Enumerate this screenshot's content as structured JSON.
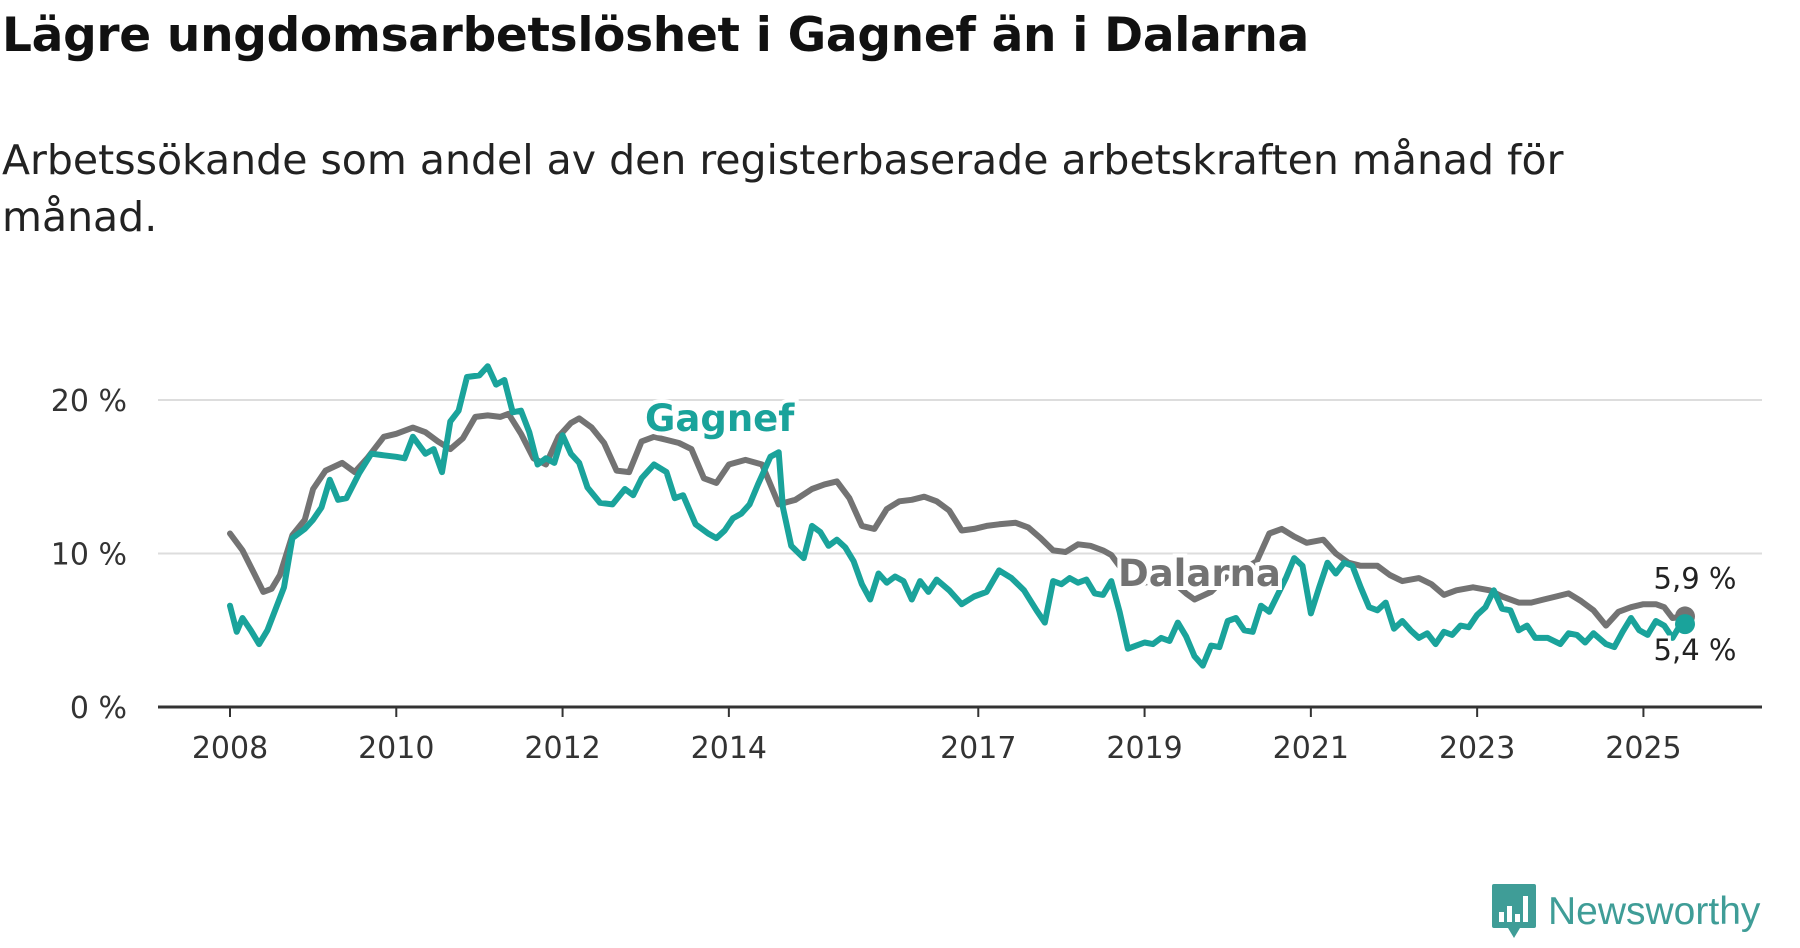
{
  "header": {
    "title": "Lägre ungdomsarbetslöshet i Gagnef än i Dalarna",
    "subtitle": "Arbetssökande som andel av den registerbaserade arbetskraften månad för månad."
  },
  "branding": {
    "name": "Newsworthy",
    "icon": "bar-chart-badge-icon"
  },
  "colors": {
    "gagnef": "#1aa39b",
    "dalarna": "#737373",
    "grid": "#dddddd",
    "axis": "#333333",
    "brand": "#3f9d97"
  },
  "chart_data": {
    "type": "line",
    "title": "Lägre ungdomsarbetslöshet i Gagnef än i Dalarna",
    "xlabel": "",
    "ylabel": "",
    "ylim": [
      0,
      20
    ],
    "xlim": [
      2008.0,
      2025.5
    ],
    "yticks": [
      0,
      10,
      20
    ],
    "ytick_labels": [
      "0 %",
      "10 %",
      "20 %"
    ],
    "xticks": [
      2008,
      2010,
      2012,
      2014,
      2017,
      2019,
      2021,
      2023,
      2025
    ],
    "xtick_labels": [
      "2008",
      "2010",
      "2012",
      "2014",
      "2017",
      "2019",
      "2021",
      "2023",
      "2025"
    ],
    "grid": true,
    "series": [
      {
        "name": "Dalarna",
        "label": "Dalarna",
        "end_label": "5,9 %",
        "points": [
          [
            2008.0,
            11.3
          ],
          [
            2008.15,
            10.2
          ],
          [
            2008.3,
            8.6
          ],
          [
            2008.4,
            7.5
          ],
          [
            2008.5,
            7.7
          ],
          [
            2008.6,
            8.6
          ],
          [
            2008.75,
            11.2
          ],
          [
            2008.9,
            12.2
          ],
          [
            2009.0,
            14.2
          ],
          [
            2009.15,
            15.4
          ],
          [
            2009.35,
            15.9
          ],
          [
            2009.5,
            15.3
          ],
          [
            2009.65,
            16.2
          ],
          [
            2009.85,
            17.6
          ],
          [
            2010.0,
            17.8
          ],
          [
            2010.2,
            18.2
          ],
          [
            2010.35,
            17.9
          ],
          [
            2010.5,
            17.3
          ],
          [
            2010.65,
            16.8
          ],
          [
            2010.8,
            17.5
          ],
          [
            2010.95,
            18.9
          ],
          [
            2011.1,
            19.0
          ],
          [
            2011.25,
            18.9
          ],
          [
            2011.35,
            19.1
          ],
          [
            2011.5,
            17.8
          ],
          [
            2011.65,
            16.2
          ],
          [
            2011.8,
            15.8
          ],
          [
            2011.95,
            17.6
          ],
          [
            2012.1,
            18.5
          ],
          [
            2012.2,
            18.8
          ],
          [
            2012.35,
            18.2
          ],
          [
            2012.5,
            17.2
          ],
          [
            2012.65,
            15.4
          ],
          [
            2012.8,
            15.3
          ],
          [
            2012.95,
            17.3
          ],
          [
            2013.1,
            17.6
          ],
          [
            2013.25,
            17.4
          ],
          [
            2013.4,
            17.2
          ],
          [
            2013.55,
            16.8
          ],
          [
            2013.7,
            14.9
          ],
          [
            2013.85,
            14.6
          ],
          [
            2014.0,
            15.8
          ],
          [
            2014.2,
            16.1
          ],
          [
            2014.4,
            15.8
          ],
          [
            2014.6,
            13.2
          ],
          [
            2014.8,
            13.5
          ],
          [
            2015.0,
            14.2
          ],
          [
            2015.15,
            14.5
          ],
          [
            2015.3,
            14.7
          ],
          [
            2015.45,
            13.6
          ],
          [
            2015.6,
            11.8
          ],
          [
            2015.75,
            11.6
          ],
          [
            2015.9,
            12.9
          ],
          [
            2016.05,
            13.4
          ],
          [
            2016.2,
            13.5
          ],
          [
            2016.35,
            13.7
          ],
          [
            2016.5,
            13.4
          ],
          [
            2016.65,
            12.8
          ],
          [
            2016.8,
            11.5
          ],
          [
            2016.95,
            11.6
          ],
          [
            2017.1,
            11.8
          ],
          [
            2017.25,
            11.9
          ],
          [
            2017.45,
            12.0
          ],
          [
            2017.6,
            11.7
          ],
          [
            2017.75,
            11.0
          ],
          [
            2017.9,
            10.2
          ],
          [
            2018.05,
            10.1
          ],
          [
            2018.2,
            10.6
          ],
          [
            2018.35,
            10.5
          ],
          [
            2018.5,
            10.2
          ],
          [
            2018.6,
            9.9
          ],
          [
            2018.75,
            8.8
          ],
          [
            2018.85,
            8.2
          ],
          [
            2019.0,
            8.1
          ],
          [
            2019.1,
            8.2
          ],
          [
            2019.2,
            8.4
          ],
          [
            2019.35,
            8.1
          ],
          [
            2019.5,
            7.4
          ],
          [
            2019.6,
            7.0
          ],
          [
            2019.8,
            7.5
          ],
          [
            2020.0,
            8.6
          ],
          [
            2020.2,
            9.0
          ],
          [
            2020.35,
            9.5
          ],
          [
            2020.5,
            11.3
          ],
          [
            2020.65,
            11.6
          ],
          [
            2020.8,
            11.1
          ],
          [
            2020.95,
            10.7
          ],
          [
            2021.15,
            10.9
          ],
          [
            2021.3,
            10.0
          ],
          [
            2021.45,
            9.4
          ],
          [
            2021.6,
            9.2
          ],
          [
            2021.8,
            9.2
          ],
          [
            2021.95,
            8.6
          ],
          [
            2022.1,
            8.2
          ],
          [
            2022.3,
            8.4
          ],
          [
            2022.45,
            8.0
          ],
          [
            2022.6,
            7.3
          ],
          [
            2022.75,
            7.6
          ],
          [
            2022.95,
            7.8
          ],
          [
            2023.15,
            7.6
          ],
          [
            2023.3,
            7.2
          ],
          [
            2023.5,
            6.8
          ],
          [
            2023.65,
            6.8
          ],
          [
            2023.8,
            7.0
          ],
          [
            2023.95,
            7.2
          ],
          [
            2024.1,
            7.4
          ],
          [
            2024.25,
            6.9
          ],
          [
            2024.4,
            6.3
          ],
          [
            2024.55,
            5.3
          ],
          [
            2024.7,
            6.2
          ],
          [
            2024.85,
            6.5
          ],
          [
            2025.0,
            6.7
          ],
          [
            2025.15,
            6.7
          ],
          [
            2025.25,
            6.5
          ],
          [
            2025.35,
            5.8
          ],
          [
            2025.5,
            5.9
          ]
        ]
      },
      {
        "name": "Gagnef",
        "label": "Gagnef",
        "end_label": "5,4 %",
        "points": [
          [
            2008.0,
            6.6
          ],
          [
            2008.08,
            4.9
          ],
          [
            2008.15,
            5.8
          ],
          [
            2008.25,
            5.0
          ],
          [
            2008.35,
            4.1
          ],
          [
            2008.45,
            5.0
          ],
          [
            2008.55,
            6.4
          ],
          [
            2008.65,
            7.8
          ],
          [
            2008.75,
            11.0
          ],
          [
            2008.9,
            11.6
          ],
          [
            2009.0,
            12.2
          ],
          [
            2009.1,
            13.0
          ],
          [
            2009.2,
            14.8
          ],
          [
            2009.3,
            13.5
          ],
          [
            2009.4,
            13.6
          ],
          [
            2009.55,
            15.2
          ],
          [
            2009.7,
            16.5
          ],
          [
            2009.85,
            16.4
          ],
          [
            2010.0,
            16.3
          ],
          [
            2010.1,
            16.2
          ],
          [
            2010.2,
            17.6
          ],
          [
            2010.35,
            16.5
          ],
          [
            2010.45,
            16.8
          ],
          [
            2010.55,
            15.3
          ],
          [
            2010.65,
            18.6
          ],
          [
            2010.75,
            19.3
          ],
          [
            2010.85,
            21.5
          ],
          [
            2011.0,
            21.6
          ],
          [
            2011.1,
            22.2
          ],
          [
            2011.2,
            21.0
          ],
          [
            2011.3,
            21.3
          ],
          [
            2011.4,
            19.2
          ],
          [
            2011.5,
            19.3
          ],
          [
            2011.6,
            17.9
          ],
          [
            2011.7,
            15.8
          ],
          [
            2011.8,
            16.2
          ],
          [
            2011.9,
            15.9
          ],
          [
            2012.0,
            17.7
          ],
          [
            2012.1,
            16.5
          ],
          [
            2012.2,
            15.9
          ],
          [
            2012.3,
            14.3
          ],
          [
            2012.45,
            13.3
          ],
          [
            2012.6,
            13.2
          ],
          [
            2012.75,
            14.2
          ],
          [
            2012.85,
            13.8
          ],
          [
            2012.95,
            14.9
          ],
          [
            2013.1,
            15.8
          ],
          [
            2013.25,
            15.3
          ],
          [
            2013.35,
            13.6
          ],
          [
            2013.45,
            13.8
          ],
          [
            2013.6,
            11.9
          ],
          [
            2013.75,
            11.3
          ],
          [
            2013.85,
            11.0
          ],
          [
            2013.95,
            11.5
          ],
          [
            2014.05,
            12.3
          ],
          [
            2014.15,
            12.6
          ],
          [
            2014.25,
            13.2
          ],
          [
            2014.35,
            14.5
          ],
          [
            2014.5,
            16.3
          ],
          [
            2014.6,
            16.6
          ],
          [
            2014.65,
            13.0
          ],
          [
            2014.75,
            10.5
          ],
          [
            2014.9,
            9.7
          ],
          [
            2015.0,
            11.8
          ],
          [
            2015.1,
            11.4
          ],
          [
            2015.2,
            10.5
          ],
          [
            2015.3,
            10.9
          ],
          [
            2015.4,
            10.4
          ],
          [
            2015.5,
            9.5
          ],
          [
            2015.6,
            8.0
          ],
          [
            2015.7,
            7.0
          ],
          [
            2015.8,
            8.7
          ],
          [
            2015.9,
            8.1
          ],
          [
            2016.0,
            8.5
          ],
          [
            2016.1,
            8.2
          ],
          [
            2016.2,
            7.0
          ],
          [
            2016.3,
            8.2
          ],
          [
            2016.4,
            7.5
          ],
          [
            2016.5,
            8.3
          ],
          [
            2016.65,
            7.6
          ],
          [
            2016.8,
            6.7
          ],
          [
            2016.95,
            7.2
          ],
          [
            2017.1,
            7.5
          ],
          [
            2017.25,
            8.9
          ],
          [
            2017.4,
            8.4
          ],
          [
            2017.55,
            7.6
          ],
          [
            2017.7,
            6.3
          ],
          [
            2017.8,
            5.5
          ],
          [
            2017.9,
            8.2
          ],
          [
            2018.0,
            8.0
          ],
          [
            2018.1,
            8.4
          ],
          [
            2018.2,
            8.1
          ],
          [
            2018.3,
            8.3
          ],
          [
            2018.4,
            7.4
          ],
          [
            2018.5,
            7.3
          ],
          [
            2018.6,
            8.2
          ],
          [
            2018.7,
            6.2
          ],
          [
            2018.8,
            3.8
          ],
          [
            2018.9,
            4.0
          ],
          [
            2019.0,
            4.2
          ],
          [
            2019.1,
            4.1
          ],
          [
            2019.2,
            4.5
          ],
          [
            2019.3,
            4.3
          ],
          [
            2019.4,
            5.5
          ],
          [
            2019.5,
            4.6
          ],
          [
            2019.6,
            3.3
          ],
          [
            2019.7,
            2.7
          ],
          [
            2019.8,
            4.0
          ],
          [
            2019.9,
            3.9
          ],
          [
            2020.0,
            5.6
          ],
          [
            2020.1,
            5.8
          ],
          [
            2020.2,
            5.0
          ],
          [
            2020.3,
            4.9
          ],
          [
            2020.4,
            6.6
          ],
          [
            2020.5,
            6.2
          ],
          [
            2020.6,
            7.3
          ],
          [
            2020.7,
            8.4
          ],
          [
            2020.8,
            9.7
          ],
          [
            2020.9,
            9.2
          ],
          [
            2021.0,
            6.1
          ],
          [
            2021.1,
            7.8
          ],
          [
            2021.2,
            9.4
          ],
          [
            2021.3,
            8.7
          ],
          [
            2021.4,
            9.4
          ],
          [
            2021.5,
            9.2
          ],
          [
            2021.6,
            7.8
          ],
          [
            2021.7,
            6.5
          ],
          [
            2021.8,
            6.3
          ],
          [
            2021.9,
            6.8
          ],
          [
            2022.0,
            5.1
          ],
          [
            2022.1,
            5.6
          ],
          [
            2022.2,
            5.0
          ],
          [
            2022.3,
            4.5
          ],
          [
            2022.4,
            4.8
          ],
          [
            2022.5,
            4.1
          ],
          [
            2022.6,
            4.9
          ],
          [
            2022.7,
            4.7
          ],
          [
            2022.8,
            5.3
          ],
          [
            2022.9,
            5.2
          ],
          [
            2023.0,
            6.0
          ],
          [
            2023.1,
            6.5
          ],
          [
            2023.2,
            7.6
          ],
          [
            2023.3,
            6.4
          ],
          [
            2023.4,
            6.3
          ],
          [
            2023.5,
            5.0
          ],
          [
            2023.6,
            5.3
          ],
          [
            2023.7,
            4.5
          ],
          [
            2023.85,
            4.5
          ],
          [
            2024.0,
            4.1
          ],
          [
            2024.1,
            4.8
          ],
          [
            2024.2,
            4.7
          ],
          [
            2024.3,
            4.2
          ],
          [
            2024.4,
            4.8
          ],
          [
            2024.55,
            4.1
          ],
          [
            2024.65,
            3.9
          ],
          [
            2024.75,
            4.9
          ],
          [
            2024.85,
            5.8
          ],
          [
            2024.95,
            5.0
          ],
          [
            2025.05,
            4.7
          ],
          [
            2025.15,
            5.6
          ],
          [
            2025.25,
            5.3
          ],
          [
            2025.35,
            4.5
          ],
          [
            2025.45,
            5.4
          ],
          [
            2025.5,
            5.4
          ]
        ]
      }
    ]
  }
}
